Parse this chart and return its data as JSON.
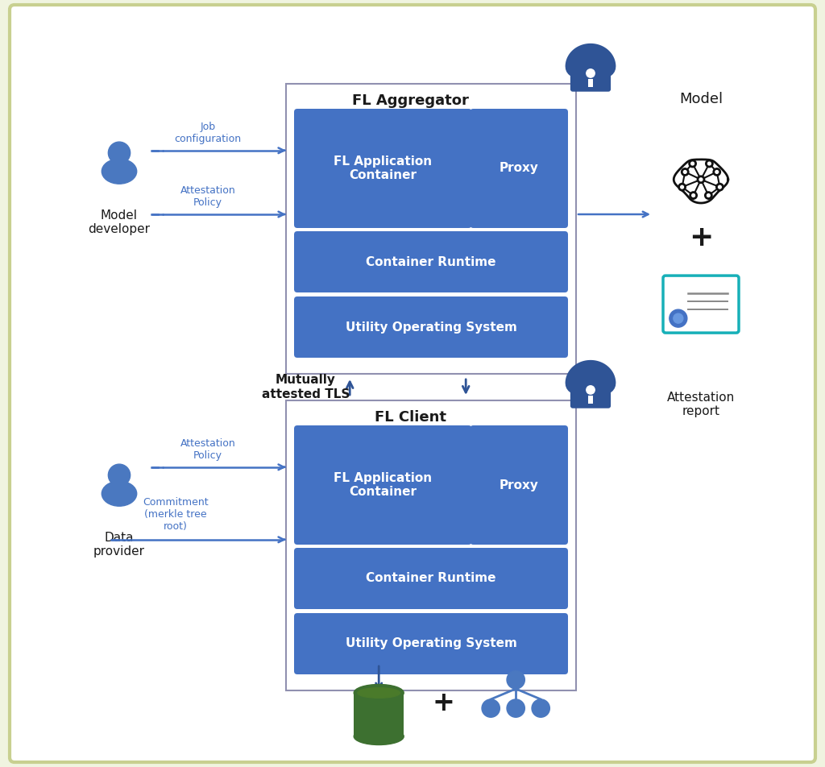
{
  "bg_color": "#f0f4e0",
  "white": "#ffffff",
  "blue_dark": "#2f5496",
  "blue_mid": "#4472c4",
  "blue_lighter": "#5b8dd9",
  "blue_text": "#4472c4",
  "black": "#1a1a1a",
  "green_dark": "#375623",
  "teal": "#17adb0",
  "agg_title": "FL Aggregator",
  "client_title": "FL Client",
  "model_label": "Model",
  "attestation_label": "Attestation\nreport",
  "mutually_label": "Mutually\nattested TLS",
  "model_dev_label": "Model\ndeveloper",
  "data_prov_label": "Data\nprovider",
  "app_container_label": "FL Application\nContainer",
  "proxy_label": "Proxy",
  "container_runtime_label": "Container Runtime",
  "utility_os_label": "Utility Operating System",
  "job_config_label": "Job\nconfiguration",
  "attestation_policy_label": "Attestation\nPolicy",
  "commitment_label": "Commitment\n(merkle tree\nroot)"
}
